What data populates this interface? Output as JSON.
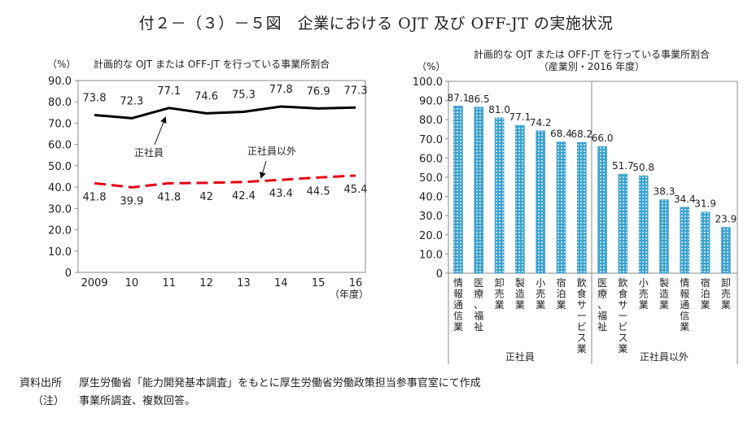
{
  "title": "付２－（３）－５図　企業における OJT 及び OFF-JT の実施状況",
  "chart_data": [
    {
      "type": "line",
      "title": "計画的な OJT または OFF-JT を行っている事業所割合",
      "ylabel": "（%）",
      "xlabel": "（年度）",
      "ylim": [
        0,
        90
      ],
      "yticks": [
        "0",
        "10.0",
        "20.0",
        "30.0",
        "40.0",
        "50.0",
        "60.0",
        "70.0",
        "80.0",
        "90.0"
      ],
      "categories": [
        "2009",
        "10",
        "11",
        "12",
        "13",
        "14",
        "15",
        "16"
      ],
      "series": [
        {
          "name": "正社員",
          "color": "#000000",
          "style": "solid",
          "values": [
            73.8,
            72.3,
            77.1,
            74.6,
            75.3,
            77.8,
            76.9,
            77.3
          ],
          "labels": [
            "73.8",
            "72.3",
            "77.1",
            "74.6",
            "75.3",
            "77.8",
            "76.9",
            "77.3"
          ]
        },
        {
          "name": "正社員以外",
          "color": "#e60012",
          "style": "dashed",
          "values": [
            41.8,
            39.9,
            41.8,
            42,
            42.4,
            43.4,
            44.5,
            45.4
          ],
          "labels": [
            "41.8",
            "39.9",
            "41.8",
            "42",
            "42.4",
            "43.4",
            "44.5",
            "45.4"
          ]
        }
      ],
      "annotations": [
        {
          "text": "正社員",
          "points_to": "11"
        },
        {
          "text": "正社員以外",
          "points_to": "14"
        }
      ],
      "grid": false
    },
    {
      "type": "bar",
      "title": "計画的な OJT または OFF-JT を行っている事業所割合",
      "subtitle": "（産業別・2016 年度）",
      "ylabel": "（%）",
      "ylim": [
        0,
        100
      ],
      "yticks": [
        "0",
        "10.0",
        "20.0",
        "30.0",
        "40.0",
        "50.0",
        "60.0",
        "70.0",
        "80.0",
        "90.0",
        "100.0"
      ],
      "bar_color": "#3ba3d3",
      "groups": [
        {
          "name": "正社員",
          "categories": [
            "情報通信業",
            "医療，福祉",
            "卸売業",
            "製造業",
            "小売業",
            "宿泊業",
            "飲食サービス業"
          ],
          "values": [
            87.1,
            86.5,
            81.0,
            77.1,
            74.2,
            68.4,
            68.2
          ],
          "labels": [
            "87.1",
            "86.5",
            "81.0",
            "77.1",
            "74.2",
            "68.4",
            "68.2"
          ]
        },
        {
          "name": "正社員以外",
          "categories": [
            "医療，福祉",
            "飲食サービス業",
            "小売業",
            "製造業",
            "情報通信業",
            "宿泊業",
            "卸売業"
          ],
          "values": [
            66.0,
            51.7,
            50.8,
            38.3,
            34.4,
            31.9,
            23.9
          ],
          "labels": [
            "66.0",
            "51.7",
            "50.8",
            "38.3",
            "34.4",
            "31.9",
            "23.9"
          ]
        }
      ],
      "grid": false
    }
  ],
  "footer": {
    "source_label": "資料出所",
    "source_text": "厚生労働省「能力開発基本調査」をもとに厚生労働省労働政策担当参事官室にて作成",
    "note_label": "（注）",
    "note_text": "事業所調査、複数回答。"
  }
}
